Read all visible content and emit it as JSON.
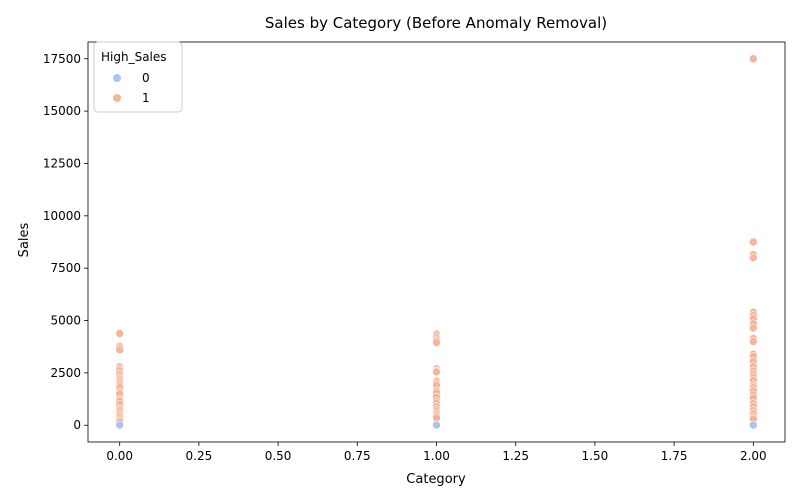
{
  "chart_data": {
    "type": "scatter",
    "title": "Sales by Category (Before Anomaly Removal)",
    "xlabel": "Category",
    "ylabel": "Sales",
    "xlim": [
      -0.1,
      2.1
    ],
    "ylim": [
      -800,
      18300
    ],
    "xticks": [
      0.0,
      0.25,
      0.5,
      0.75,
      1.0,
      1.25,
      1.5,
      1.75,
      2.0
    ],
    "xtick_labels": [
      "0.00",
      "0.25",
      "0.50",
      "0.75",
      "1.00",
      "1.25",
      "1.50",
      "1.75",
      "2.00"
    ],
    "yticks": [
      0,
      2500,
      5000,
      7500,
      10000,
      12500,
      15000,
      17500
    ],
    "ytick_labels": [
      "0",
      "2500",
      "5000",
      "7500",
      "10000",
      "12500",
      "15000",
      "17500"
    ],
    "grid": false,
    "legend": {
      "title": "High_Sales",
      "placement": "top-left",
      "entries": [
        "0",
        "1"
      ]
    },
    "colors": {
      "0": "#a9c3f5",
      "1": "#f4b59b",
      "axis": "#000000"
    },
    "series": [
      {
        "name": "0",
        "points": [
          {
            "x": 0,
            "y": 10
          },
          {
            "x": 1,
            "y": 10
          },
          {
            "x": 2,
            "y": 10
          }
        ]
      },
      {
        "name": "1",
        "points": [
          {
            "x": 0,
            "y": 4420
          },
          {
            "x": 0,
            "y": 4380
          },
          {
            "x": 0,
            "y": 3780
          },
          {
            "x": 0,
            "y": 3700
          },
          {
            "x": 0,
            "y": 3600
          },
          {
            "x": 0,
            "y": 2800
          },
          {
            "x": 0,
            "y": 2700
          },
          {
            "x": 0,
            "y": 2600
          },
          {
            "x": 0,
            "y": 2450
          },
          {
            "x": 0,
            "y": 2300
          },
          {
            "x": 0,
            "y": 2200
          },
          {
            "x": 0,
            "y": 2100
          },
          {
            "x": 0,
            "y": 2000
          },
          {
            "x": 0,
            "y": 1900
          },
          {
            "x": 0,
            "y": 1800
          },
          {
            "x": 0,
            "y": 1600
          },
          {
            "x": 0,
            "y": 1500
          },
          {
            "x": 0,
            "y": 1250
          },
          {
            "x": 0,
            "y": 1150
          },
          {
            "x": 0,
            "y": 1000
          },
          {
            "x": 0,
            "y": 800
          },
          {
            "x": 0,
            "y": 700
          },
          {
            "x": 0,
            "y": 550
          },
          {
            "x": 0,
            "y": 450
          },
          {
            "x": 0,
            "y": 350
          },
          {
            "x": 0,
            "y": 250
          },
          {
            "x": 0,
            "y": 150
          },
          {
            "x": 1,
            "y": 4350
          },
          {
            "x": 1,
            "y": 4250
          },
          {
            "x": 1,
            "y": 4150
          },
          {
            "x": 1,
            "y": 4050
          },
          {
            "x": 1,
            "y": 3950
          },
          {
            "x": 1,
            "y": 2700
          },
          {
            "x": 1,
            "y": 2600
          },
          {
            "x": 1,
            "y": 2550
          },
          {
            "x": 1,
            "y": 2100
          },
          {
            "x": 1,
            "y": 2000
          },
          {
            "x": 1,
            "y": 1900
          },
          {
            "x": 1,
            "y": 1650
          },
          {
            "x": 1,
            "y": 1550
          },
          {
            "x": 1,
            "y": 1350
          },
          {
            "x": 1,
            "y": 1150
          },
          {
            "x": 1,
            "y": 1050
          },
          {
            "x": 1,
            "y": 900
          },
          {
            "x": 1,
            "y": 750
          },
          {
            "x": 1,
            "y": 650
          },
          {
            "x": 1,
            "y": 550
          },
          {
            "x": 1,
            "y": 450
          },
          {
            "x": 1,
            "y": 350
          },
          {
            "x": 2,
            "y": 17500
          },
          {
            "x": 2,
            "y": 8750
          },
          {
            "x": 2,
            "y": 8150
          },
          {
            "x": 2,
            "y": 8000
          },
          {
            "x": 2,
            "y": 5400
          },
          {
            "x": 2,
            "y": 5250
          },
          {
            "x": 2,
            "y": 5100
          },
          {
            "x": 2,
            "y": 4850
          },
          {
            "x": 2,
            "y": 4650
          },
          {
            "x": 2,
            "y": 4150
          },
          {
            "x": 2,
            "y": 4000
          },
          {
            "x": 2,
            "y": 3400
          },
          {
            "x": 2,
            "y": 3300
          },
          {
            "x": 2,
            "y": 3050
          },
          {
            "x": 2,
            "y": 2800
          },
          {
            "x": 2,
            "y": 2600
          },
          {
            "x": 2,
            "y": 2450
          },
          {
            "x": 2,
            "y": 2300
          },
          {
            "x": 2,
            "y": 2150
          },
          {
            "x": 2,
            "y": 1900
          },
          {
            "x": 2,
            "y": 1800
          },
          {
            "x": 2,
            "y": 1650
          },
          {
            "x": 2,
            "y": 1450
          },
          {
            "x": 2,
            "y": 1300
          },
          {
            "x": 2,
            "y": 1050
          },
          {
            "x": 2,
            "y": 900
          },
          {
            "x": 2,
            "y": 700
          },
          {
            "x": 2,
            "y": 550
          },
          {
            "x": 2,
            "y": 400
          },
          {
            "x": 2,
            "y": 300
          }
        ]
      }
    ]
  }
}
